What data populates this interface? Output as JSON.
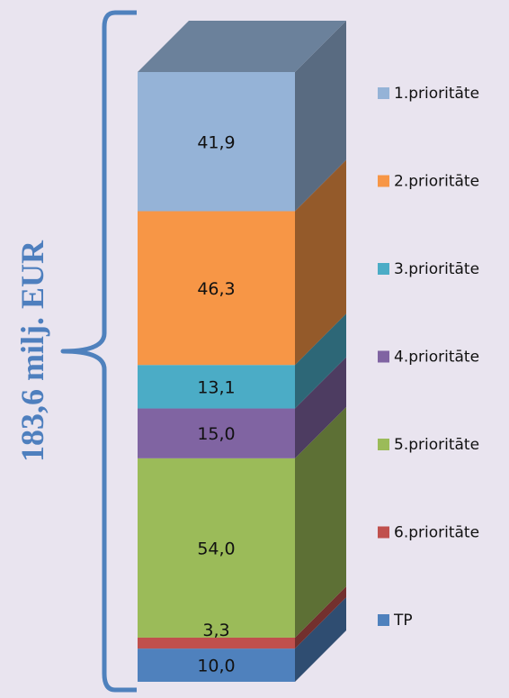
{
  "chart_data": {
    "type": "bar",
    "stacked": true,
    "style": "3d-stacked-column",
    "total_label": "183,6 milj. EUR",
    "series": [
      {
        "name": "TP",
        "value": 10.0,
        "label": "10,0",
        "color": "#4f81bd"
      },
      {
        "name": "6.prioritāte",
        "value": 3.3,
        "label": "3,3",
        "color": "#c0504d"
      },
      {
        "name": "5.prioritāte",
        "value": 54.0,
        "label": "54,0",
        "color": "#9bbb59"
      },
      {
        "name": "4.prioritāte",
        "value": 15.0,
        "label": "15,0",
        "color": "#8064a2"
      },
      {
        "name": "3.prioritāte",
        "value": 13.1,
        "label": "13,1",
        "color": "#4bacc6"
      },
      {
        "name": "2.prioritāte",
        "value": 46.3,
        "label": "46,3",
        "color": "#f79646"
      },
      {
        "name": "1.prioritāte",
        "value": 41.9,
        "label": "41,9",
        "color": "#95b3d7"
      }
    ],
    "legend_order": [
      "1.prioritāte",
      "2.prioritāte",
      "3.prioritāte",
      "4.prioritāte",
      "5.prioritāte",
      "6.prioritāte",
      "TP"
    ],
    "legend_position": "right",
    "brace_color": "#4f81bd"
  }
}
